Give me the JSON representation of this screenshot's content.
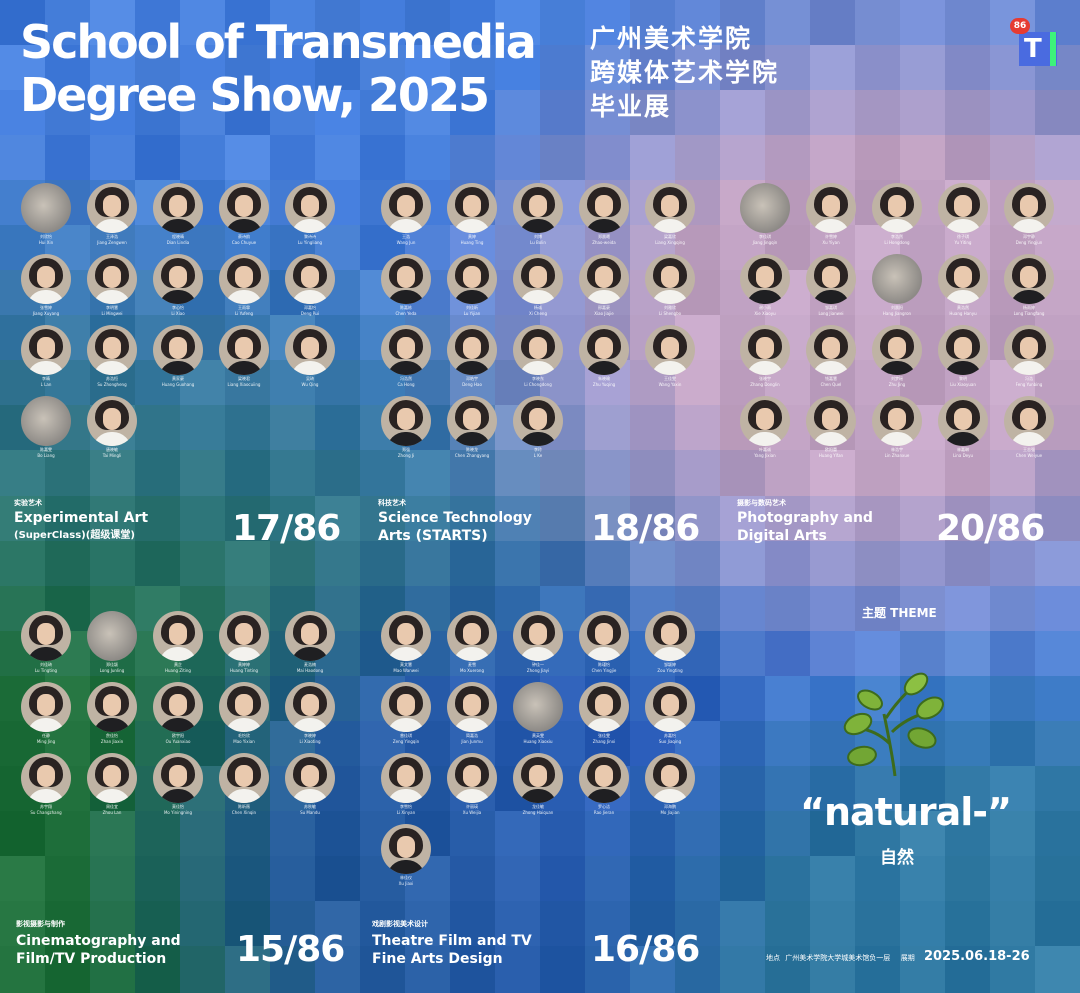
{
  "title_en": [
    "School of Transmedia",
    "Degree Show, 2025"
  ],
  "title_cn": [
    "广州美术学院",
    "跨媒体艺术学院",
    "毕业展"
  ],
  "logo": {
    "badge": "86",
    "letter": "T"
  },
  "sections": [
    {
      "key": "exp",
      "cn": "实验艺术",
      "en_lines": [
        "Experimental Art",
        "(SuperClass)(超级课堂)"
      ],
      "count": "17/86",
      "members": [
        {
          "cn": "刘欣怡",
          "en": "Hui Xin",
          "blur": true
        },
        {
          "cn": "王泽浩",
          "en": "Jiang Zengwen"
        },
        {
          "cn": "程晓晴",
          "en": "Dian Lindia",
          "dark": true
        },
        {
          "cn": "蔡诗韵",
          "en": "Cao Chuyue",
          "dark": true
        },
        {
          "cn": "黎诗诗",
          "en": "Lu Yingliang"
        },
        {
          "cn": "张雪婷",
          "en": "Jiang Xuyang"
        },
        {
          "cn": "李明慧",
          "en": "Li Mingwei"
        },
        {
          "cn": "李心怡",
          "en": "Li Xiao",
          "dark": true
        },
        {
          "cn": "王雨霏",
          "en": "Li Yufeng"
        },
        {
          "cn": "邓嘉怡",
          "en": "Deng Rui"
        },
        {
          "cn": "李晴",
          "en": "L Lan"
        },
        {
          "cn": "苏浩恒",
          "en": "Su Zhongheng"
        },
        {
          "cn": "黄家豪",
          "en": "Huang Guohang",
          "dark": true
        },
        {
          "cn": "梁晓君",
          "en": "Liang Xiaocuiing",
          "dark": true
        },
        {
          "cn": "吴琦",
          "en": "Wu Qing"
        },
        {
          "cn": "陈嘉雯",
          "en": "Bo Liang",
          "blur": true
        },
        {
          "cn": "唐晓敏",
          "en": "Tai Mingli"
        }
      ]
    },
    {
      "key": "sci",
      "cn": "科技艺术",
      "en_lines": [
        "Science Technology",
        "Arts (STARTS)"
      ],
      "count": "18/86",
      "members": [
        {
          "cn": "王浩",
          "en": "Wang Jun"
        },
        {
          "cn": "黄婷",
          "en": "Huang Ting"
        },
        {
          "cn": "刘博",
          "en": "Lu Bolin",
          "dark": true
        },
        {
          "cn": "郑晨曦",
          "en": "Zhao-weida",
          "dark": true
        },
        {
          "cn": "梁嘉欣",
          "en": "Liang Xingqing"
        },
        {
          "cn": "陈嘉栋",
          "en": "Chen Yeda",
          "dark": true
        },
        {
          "cn": "刘佳昕",
          "en": "Lu Yijian",
          "dark": true
        },
        {
          "cn": "杨诚",
          "en": "Xi Cheng"
        },
        {
          "cn": "邢嘉豪",
          "en": "Xiao Jiajie"
        },
        {
          "cn": "刘雅欣",
          "en": "Li Shengbo"
        },
        {
          "cn": "冯浩然",
          "en": "Ca Hong",
          "dark": true
        },
        {
          "cn": "邓皓宇",
          "en": "Deng Hao",
          "dark": true
        },
        {
          "cn": "李晓东",
          "en": "Li Chongdong"
        },
        {
          "cn": "朱晓瑜",
          "en": "Zhu Yuqing",
          "dark": true
        },
        {
          "cn": "王佳雯",
          "en": "Wang Yaxin"
        },
        {
          "cn": "郑强",
          "en": "Zhong Ji",
          "dark": true
        },
        {
          "cn": "陈晓龙",
          "en": "Chen Zhangyang",
          "dark": true
        },
        {
          "cn": "李玲",
          "en": "L Ke",
          "dark": true
        }
      ]
    },
    {
      "key": "photo",
      "cn": "摄影与数码艺术",
      "en_lines": [
        "Photography and",
        "Digital Arts"
      ],
      "count": "20/86",
      "members": [
        {
          "cn": "李佳琪",
          "en": "Jiang Jingqin",
          "blur": true
        },
        {
          "cn": "许雪婷",
          "en": "Xu Yiyan"
        },
        {
          "cn": "李浩然",
          "en": "Li Hongdong"
        },
        {
          "cn": "徐子琪",
          "en": "Yu Yiting"
        },
        {
          "cn": "邓宇静",
          "en": "Deng Yingjun"
        },
        {
          "cn": "谢小雨",
          "en": "Xie Xiaoyu",
          "dark": true
        },
        {
          "cn": "邹嘉琪",
          "en": "Long Jianwei",
          "dark": true
        },
        {
          "cn": "刘晨阳",
          "en": "Hang Jiangron",
          "blur": true
        },
        {
          "cn": "黄浩然",
          "en": "Huang Hanyu"
        },
        {
          "cn": "杨雨婷",
          "en": "Long Tiangfang",
          "dark": true
        },
        {
          "cn": "张晓宇",
          "en": "Zhang Donglin"
        },
        {
          "cn": "钱嘉慧",
          "en": "Chen Quel"
        },
        {
          "cn": "刘梦瑶",
          "en": "Zhu Jing",
          "dark": true
        },
        {
          "cn": "黎明",
          "en": "Liu Xiaoyuan",
          "dark": true
        },
        {
          "cn": "冯浩",
          "en": "Feng Yunbing"
        },
        {
          "cn": "叶嘉诚",
          "en": "Yang Jixian"
        },
        {
          "cn": "欧阳蕾",
          "en": "Huang Yifan"
        },
        {
          "cn": "林浩宇",
          "en": "Lin Zhanxue"
        },
        {
          "cn": "林嘉琳",
          "en": "Lina Deyu",
          "dark": true
        },
        {
          "cn": "王志强",
          "en": "Chen Weiyue"
        }
      ]
    },
    {
      "key": "cine",
      "cn": "影视摄影与制作",
      "en_lines": [
        "Cinematography and",
        "Film/TV Production"
      ],
      "count": "15/86",
      "members": [
        {
          "cn": "刘佳琦",
          "en": "Lu Tingting",
          "dark": true
        },
        {
          "cn": "郑佳颖",
          "en": "Long Junling",
          "blur": true
        },
        {
          "cn": "黄芷",
          "en": "Huang Ziting"
        },
        {
          "cn": "黄婷婷",
          "en": "Huang Tinting"
        },
        {
          "cn": "麦浩楠",
          "en": "Mai Haodong",
          "dark": true
        },
        {
          "cn": "任静",
          "en": "Ming Jing"
        },
        {
          "cn": "詹佳怡",
          "en": "Zhan Jiaxin",
          "dark": true
        },
        {
          "cn": "欧宇阳",
          "en": "Ou Yuanxiao",
          "dark": true
        },
        {
          "cn": "毛怡欣",
          "en": "Mao Yixian"
        },
        {
          "cn": "李晓婷",
          "en": "Li Xiaoting"
        },
        {
          "cn": "苏宇翔",
          "en": "Su Changzhang"
        },
        {
          "cn": "周佳宜",
          "en": "Zhou Lan"
        },
        {
          "cn": "莫佳怡",
          "en": "Mo Yiningning",
          "dark": true
        },
        {
          "cn": "陈昕薇",
          "en": "Chen Xinqin"
        },
        {
          "cn": "苏秋敏",
          "en": "Su Mandu"
        }
      ]
    },
    {
      "key": "theatre",
      "cn": "戏剧影视美术设计",
      "en_lines": [
        "Theatre Film and TV",
        "Fine Arts Design"
      ],
      "count": "16/86",
      "members": [
        {
          "cn": "莫文慧",
          "en": "Mao Wanwei"
        },
        {
          "cn": "麦雪",
          "en": "Mo Xuerong"
        },
        {
          "cn": "钟佳一",
          "en": "Zhong Jiayi"
        },
        {
          "cn": "陈瑾怡",
          "en": "Chen Yingjie"
        },
        {
          "cn": "邹颖婷",
          "en": "Zou Yingting"
        },
        {
          "cn": "曾佳琪",
          "en": "Zeng Yingqin"
        },
        {
          "cn": "简嘉浩",
          "en": "Jian Junmu"
        },
        {
          "cn": "黄英雯",
          "en": "Huang Xiaoxiu",
          "blur": true
        },
        {
          "cn": "张佳雯",
          "en": "Zhang Jinxi"
        },
        {
          "cn": "苏嘉怡",
          "en": "Suo Jiaqing"
        },
        {
          "cn": "李雪怡",
          "en": "Li Xinyan"
        },
        {
          "cn": "许丽瑛",
          "en": "Xu Weijia"
        },
        {
          "cn": "龙佳敏",
          "en": "Zhong Haiquan",
          "dark": true
        },
        {
          "cn": "罗心洁",
          "en": "Rao Jieran",
          "dark": true
        },
        {
          "cn": "邓海鹏",
          "en": "Mo Jiajian"
        },
        {
          "cn": "林佳仪",
          "en": "Xu Jiaxi",
          "dark": true
        }
      ]
    }
  ],
  "theme": {
    "label": "主题 THEME",
    "title": "“natural-”",
    "subtitle": "自然"
  },
  "footer": {
    "location_label": "地点",
    "location": "广州美术学院大学城美术馆负一层",
    "date_label": "展期",
    "date": "2025.06.18-26"
  },
  "colors": {
    "blue": "#3e78d8",
    "deep_blue": "#2753c4",
    "green": "#1e6e3a",
    "pink": "#d7a9bf",
    "light_blue": "#8fb6e8",
    "badge_red": "#e63b32"
  }
}
